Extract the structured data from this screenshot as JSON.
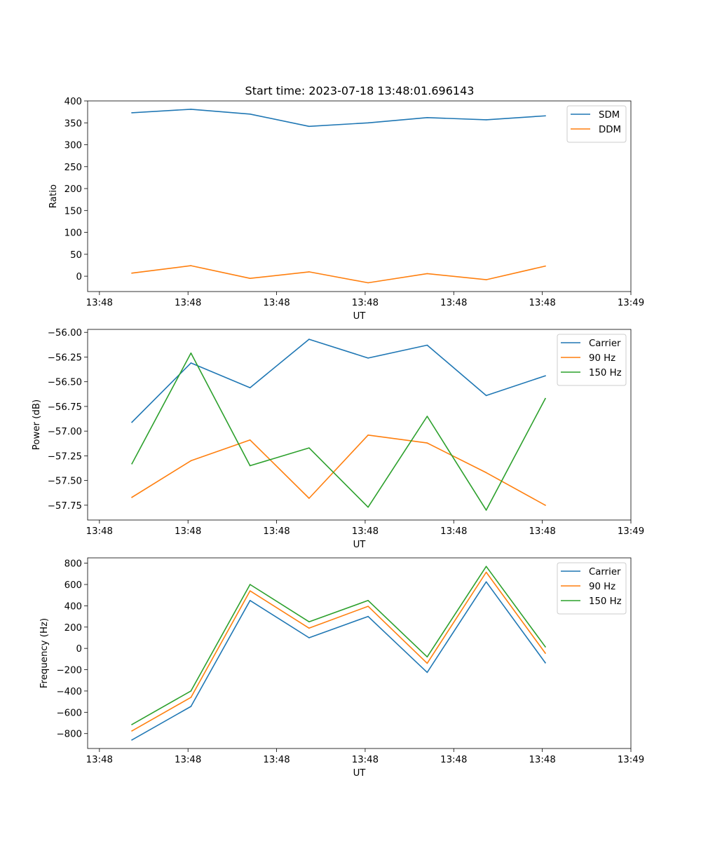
{
  "title": "Start time: 2023-07-18 13:48:01.696143",
  "colors": {
    "blue": "#1f77b4",
    "orange": "#ff7f0e",
    "green": "#2ca02c"
  },
  "chart_data": [
    {
      "type": "line",
      "ylabel": "Ratio",
      "xlabel": "UT",
      "x": [
        1,
        2,
        3,
        4,
        5,
        6,
        7,
        8
      ],
      "xlim": [
        0.25,
        9.45
      ],
      "xticks": [
        0.45,
        1.95,
        3.45,
        4.95,
        6.45,
        7.95,
        9.45
      ],
      "xtick_labels": [
        "13:48",
        "13:48",
        "13:48",
        "13:48",
        "13:48",
        "13:48",
        "13:49"
      ],
      "ylim": [
        -35,
        400
      ],
      "yticks": [
        0,
        50,
        100,
        150,
        200,
        250,
        300,
        350,
        400
      ],
      "ytick_labels": [
        "0",
        "50",
        "100",
        "150",
        "200",
        "250",
        "300",
        "350",
        "400"
      ],
      "legend": "top-right",
      "series": [
        {
          "name": "SDM",
          "color": "#1f77b4",
          "values": [
            373,
            381,
            370,
            342,
            350,
            362,
            357,
            366
          ]
        },
        {
          "name": "DDM",
          "color": "#ff7f0e",
          "values": [
            7,
            24,
            -5,
            10,
            -15,
            6,
            -8,
            23
          ]
        }
      ]
    },
    {
      "type": "line",
      "ylabel": "Power (dB)",
      "xlabel": "UT",
      "x": [
        1,
        2,
        3,
        4,
        5,
        6,
        7,
        8
      ],
      "xlim": [
        0.25,
        9.45
      ],
      "xticks": [
        0.45,
        1.95,
        3.45,
        4.95,
        6.45,
        7.95,
        9.45
      ],
      "xtick_labels": [
        "13:48",
        "13:48",
        "13:48",
        "13:48",
        "13:48",
        "13:48",
        "13:49"
      ],
      "ylim": [
        -57.9,
        -55.97
      ],
      "yticks": [
        -57.75,
        -57.5,
        -57.25,
        -57.0,
        -56.75,
        -56.5,
        -56.25,
        -56.0
      ],
      "ytick_labels": [
        "−57.75",
        "−57.50",
        "−57.25",
        "−57.00",
        "−56.75",
        "−56.50",
        "−56.25",
        "−56.00"
      ],
      "legend": "top-right",
      "series": [
        {
          "name": "Carrier",
          "color": "#1f77b4",
          "values": [
            -56.91,
            -56.31,
            -56.56,
            -56.07,
            -56.26,
            -56.13,
            -56.64,
            -56.44
          ]
        },
        {
          "name": "90 Hz",
          "color": "#ff7f0e",
          "values": [
            -57.67,
            -57.3,
            -57.09,
            -57.68,
            -57.04,
            -57.12,
            -57.42,
            -57.75
          ]
        },
        {
          "name": "150 Hz",
          "color": "#2ca02c",
          "values": [
            -57.33,
            -56.21,
            -57.35,
            -57.17,
            -57.77,
            -56.85,
            -57.8,
            -56.67
          ]
        }
      ]
    },
    {
      "type": "line",
      "ylabel": "Frequency (Hz)",
      "xlabel": "UT",
      "x": [
        1,
        2,
        3,
        4,
        5,
        6,
        7,
        8
      ],
      "xlim": [
        0.25,
        9.45
      ],
      "xticks": [
        0.45,
        1.95,
        3.45,
        4.95,
        6.45,
        7.95,
        9.45
      ],
      "xtick_labels": [
        "13:48",
        "13:48",
        "13:48",
        "13:48",
        "13:48",
        "13:48",
        "13:49"
      ],
      "ylim": [
        -940,
        850
      ],
      "yticks": [
        -800,
        -600,
        -400,
        -200,
        0,
        200,
        400,
        600,
        800
      ],
      "ytick_labels": [
        "−800",
        "−600",
        "−400",
        "−200",
        "0",
        "200",
        "400",
        "600",
        "800"
      ],
      "legend": "top-right",
      "series": [
        {
          "name": "Carrier",
          "color": "#1f77b4",
          "values": [
            -860,
            -545,
            450,
            100,
            300,
            -225,
            625,
            -135
          ]
        },
        {
          "name": "90 Hz",
          "color": "#ff7f0e",
          "values": [
            -775,
            -460,
            540,
            190,
            395,
            -140,
            715,
            -45
          ]
        },
        {
          "name": "150 Hz",
          "color": "#2ca02c",
          "values": [
            -715,
            -400,
            600,
            250,
            450,
            -80,
            770,
            15
          ]
        }
      ]
    }
  ]
}
